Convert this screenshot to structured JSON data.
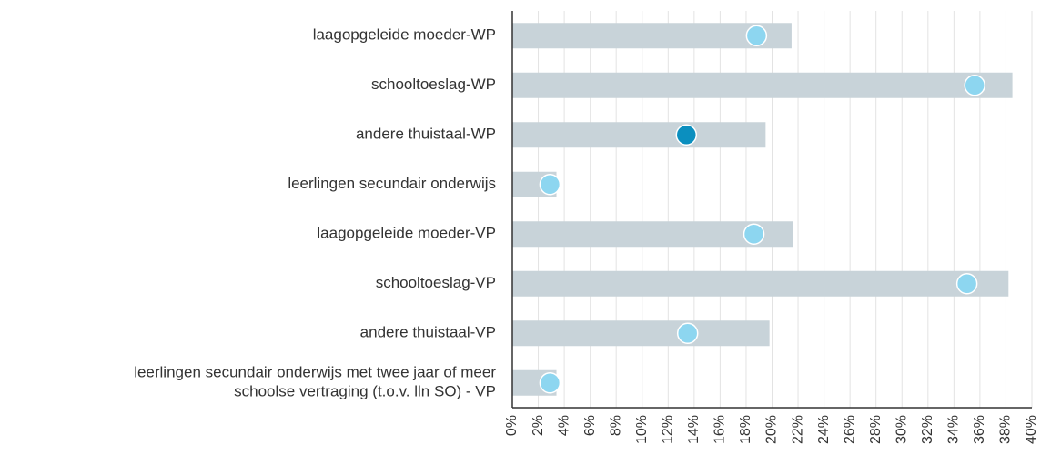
{
  "chart_data": {
    "type": "bar-dot",
    "orientation": "horizontal",
    "categories": [
      "laagopgeleide moeder-WP",
      "schooltoeslag-WP",
      "andere thuistaal-WP",
      "leerlingen secundair onderwijs",
      "laagopgeleide moeder-VP",
      "schooltoeslag-VP",
      "andere thuistaal-VP",
      [
        "leerlingen secundair onderwijs met twee jaar of meer",
        "schoolse vertraging (t.o.v. lln SO) - VP"
      ]
    ],
    "series": [
      {
        "color": "#c8d3d9",
        "values": [
          21.5,
          38.5,
          19.5,
          3.4,
          21.6,
          38.2,
          19.8,
          3.4
        ]
      },
      {
        "colors": [
          "#8dd6f0",
          "#8dd6f0",
          "#0b8fbf",
          "#8dd6f0",
          "#8dd6f0",
          "#8dd6f0",
          "#8dd6f0",
          "#8dd6f0"
        ],
        "values": [
          18.8,
          35.6,
          13.4,
          2.9,
          18.6,
          35.0,
          13.5,
          2.9
        ]
      }
    ],
    "xlim": [
      0,
      40
    ],
    "xticks": [
      {
        "value": 0,
        "label": "0%"
      },
      {
        "value": 2,
        "label": "2%"
      },
      {
        "value": 4,
        "label": "4%"
      },
      {
        "value": 6,
        "label": "6%"
      },
      {
        "value": 8,
        "label": "8%"
      },
      {
        "value": 10,
        "label": "10%"
      },
      {
        "value": 12,
        "label": "12%"
      },
      {
        "value": 14,
        "label": "14%"
      },
      {
        "value": 16,
        "label": "16%"
      },
      {
        "value": 18,
        "label": "18%"
      },
      {
        "value": 20,
        "label": "20%"
      },
      {
        "value": 22,
        "label": "22%"
      },
      {
        "value": 24,
        "label": "24%"
      },
      {
        "value": 26,
        "label": "26%"
      },
      {
        "value": 28,
        "label": "28%"
      },
      {
        "value": 30,
        "label": "30%"
      },
      {
        "value": 32,
        "label": "32%"
      },
      {
        "value": 34,
        "label": "34%"
      },
      {
        "value": 36,
        "label": "36%"
      },
      {
        "value": 38,
        "label": "38%"
      },
      {
        "value": 40,
        "label": "40%"
      }
    ],
    "grid": true
  }
}
